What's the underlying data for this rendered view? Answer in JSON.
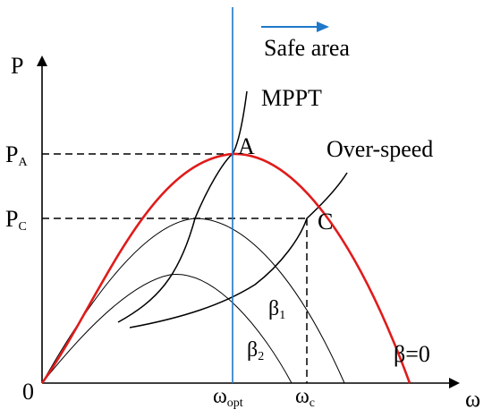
{
  "axes": {
    "y_label": "P",
    "x_label": "ω",
    "origin": "0"
  },
  "y_ticks": {
    "pa_main": "P",
    "pa_sub": "A",
    "pc_main": "P",
    "pc_sub": "C"
  },
  "x_ticks": {
    "wopt_main": "ω",
    "wopt_sub": "opt",
    "wc_main": "ω",
    "wc_sub": "c"
  },
  "curves": {
    "mppt": "MPPT",
    "overspeed": "Over-speed",
    "beta0": "β=0",
    "beta1_main": "β",
    "beta1_sub": "1",
    "beta2_main": "β",
    "beta2_sub": "2"
  },
  "points": {
    "a": "A",
    "c": "C"
  },
  "safe_area": {
    "label": "Safe area",
    "arrow_icon": "right-arrow-icon"
  },
  "colors": {
    "beta0_curve": "#e01b1b",
    "vertical_line": "#1f78c8",
    "arrow": "#1f78c8",
    "ink": "#000000"
  }
}
